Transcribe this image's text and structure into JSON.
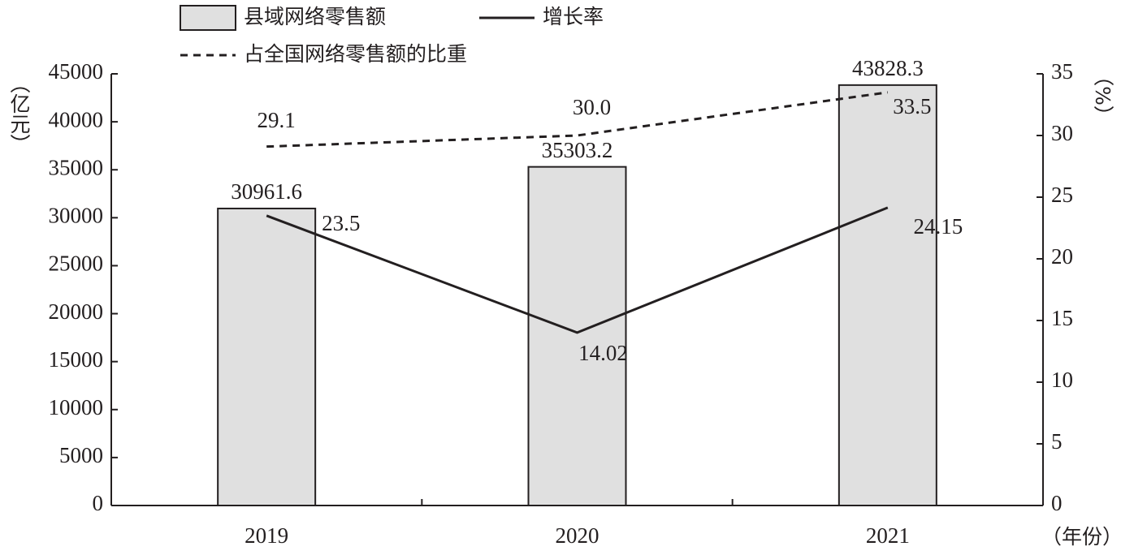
{
  "chart_data": {
    "type": "bar",
    "categories": [
      "2019",
      "2020",
      "2021"
    ],
    "series": [
      {
        "name": "县域网络零售额",
        "type": "bar",
        "color": "#e0e0e0",
        "values": [
          30961.6,
          35303.2,
          43828.3
        ]
      },
      {
        "name": "增长率",
        "type": "line",
        "axis": "y2",
        "color": "#231f20",
        "line_style": "solid",
        "values": [
          23.5,
          14.02,
          24.15
        ]
      },
      {
        "name": "占全国网络零售额的比重",
        "type": "line",
        "axis": "y2",
        "color": "#231f20",
        "line_style": "dashed",
        "values": [
          29.1,
          30.0,
          33.5
        ],
        "value_labels": [
          "29.1",
          "30.0",
          "33.5"
        ]
      }
    ],
    "ylabel": "（亿元）",
    "y2label": "（%）",
    "xlabel": "（年份）",
    "ylim": [
      0,
      45000
    ],
    "yticks": [
      0,
      5000,
      10000,
      15000,
      20000,
      25000,
      30000,
      35000,
      40000,
      45000
    ],
    "y2lim": [
      0,
      35
    ],
    "y2ticks": [
      0,
      5,
      10,
      15,
      20,
      25,
      30,
      35
    ],
    "grid": false,
    "legend": "top"
  }
}
